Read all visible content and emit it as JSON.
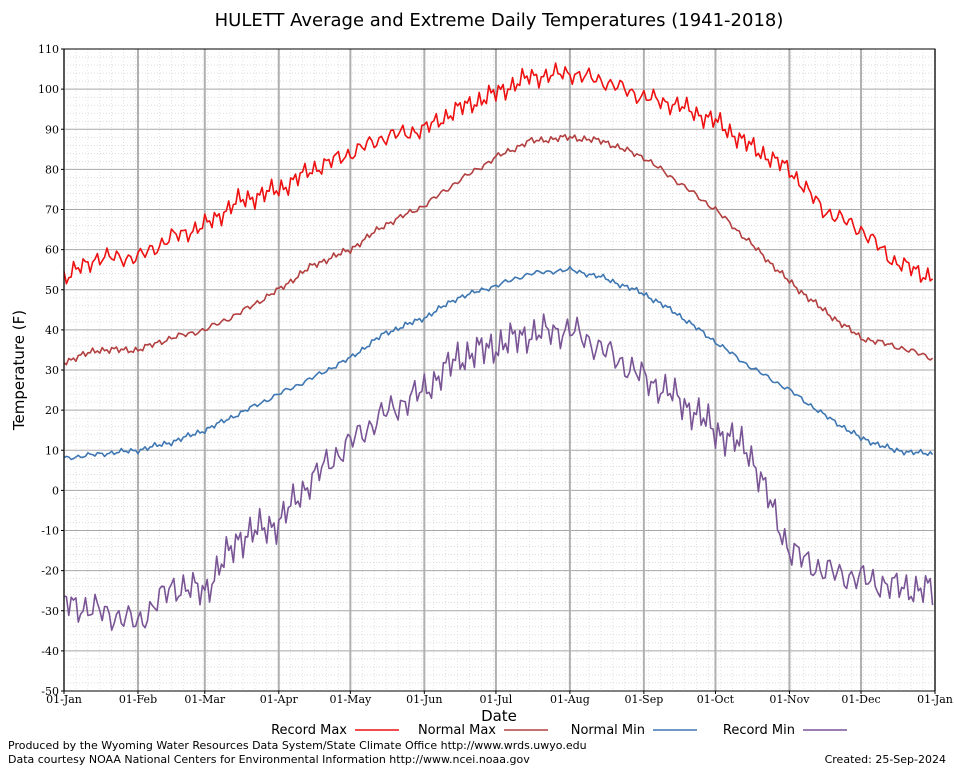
{
  "chart_data": {
    "type": "line",
    "title": "HULETT Average and Extreme Daily Temperatures (1941-2018)",
    "xlabel": "Date",
    "ylabel": "Temperature (F)",
    "ylim": [
      -50,
      110
    ],
    "yticks": [
      110,
      100,
      90,
      80,
      70,
      60,
      50,
      40,
      30,
      20,
      10,
      0,
      -10,
      -20,
      -30,
      -40,
      -50
    ],
    "xticks": [
      "01-Jan",
      "01-Feb",
      "01-Mar",
      "01-Apr",
      "01-May",
      "01-Jun",
      "01-Jul",
      "01-Aug",
      "01-Sep",
      "01-Oct",
      "01-Nov",
      "01-Dec",
      "01-Jan"
    ],
    "x": [
      "01-Jan",
      "15-Jan",
      "01-Feb",
      "15-Feb",
      "01-Mar",
      "15-Mar",
      "01-Apr",
      "15-Apr",
      "01-May",
      "15-May",
      "01-Jun",
      "15-Jun",
      "01-Jul",
      "15-Jul",
      "01-Aug",
      "15-Aug",
      "01-Sep",
      "15-Sep",
      "01-Oct",
      "15-Oct",
      "01-Nov",
      "15-Nov",
      "01-Dec",
      "15-Dec",
      "31-Dec"
    ],
    "grid": true,
    "legend_position": "bottom",
    "series": [
      {
        "name": "Record Max",
        "color": "#ee1111",
        "values": [
          53,
          58,
          58,
          63,
          66,
          72,
          75,
          80,
          84,
          88,
          90,
          95,
          99,
          103,
          104,
          102,
          98,
          96,
          92,
          86,
          80,
          70,
          65,
          57,
          53
        ]
      },
      {
        "name": "Normal Max",
        "color": "#b34040",
        "values": [
          32,
          35,
          35,
          38,
          40,
          44,
          50,
          56,
          60,
          66,
          71,
          77,
          83,
          87,
          88,
          87,
          83,
          77,
          70,
          62,
          52,
          45,
          38,
          36,
          33
        ]
      },
      {
        "name": "Normal Min",
        "color": "#3f77b3",
        "values": [
          8,
          9,
          10,
          12,
          15,
          19,
          24,
          28,
          33,
          39,
          43,
          48,
          51,
          54,
          55,
          53,
          49,
          44,
          37,
          31,
          25,
          19,
          13,
          10,
          9
        ]
      },
      {
        "name": "Record Min",
        "color": "#7a5596",
        "values": [
          -28,
          -30,
          -33,
          -24,
          -25,
          -12,
          -8,
          3,
          12,
          19,
          25,
          33,
          36,
          39,
          40,
          35,
          28,
          23,
          15,
          10,
          -15,
          -20,
          -22,
          -24,
          -25
        ]
      }
    ]
  },
  "footer": {
    "left_line1": "Produced by the Wyoming Water Resources Data System/State Climate Office http://www.wrds.uwyo.edu",
    "left_line2": "Data courtesy NOAA National Centers for Environmental Information http://www.ncei.noaa.gov",
    "created": "Created:  25-Sep-2024"
  }
}
